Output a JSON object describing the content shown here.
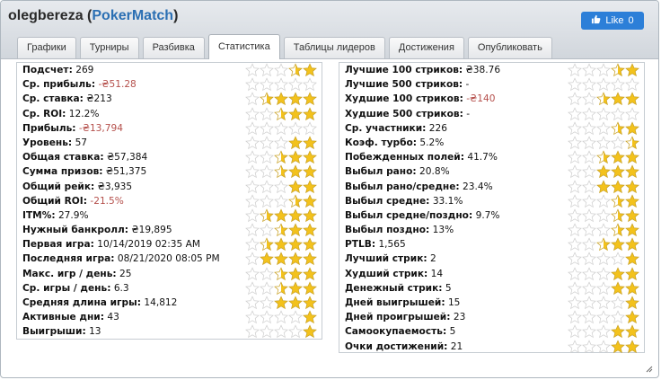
{
  "window": {
    "user": "olegbereza",
    "site_open": "(",
    "site": "PokerMatch",
    "site_close": ")"
  },
  "like": {
    "label": "Like",
    "count": "0"
  },
  "tabs": [
    {
      "label": "Графики",
      "active": false
    },
    {
      "label": "Турниры",
      "active": false
    },
    {
      "label": "Разбивка",
      "active": false
    },
    {
      "label": "Статистика",
      "active": true
    },
    {
      "label": "Таблицы лидеров",
      "active": false
    },
    {
      "label": "Достижения",
      "active": false
    },
    {
      "label": "Опубликовать",
      "active": false
    }
  ],
  "colors": {
    "negative": "#b5504c",
    "star_gold": "#f3c21c",
    "star_empty": "#e3e3e3",
    "like_bg": "#2c7fd8"
  },
  "left_stats": [
    {
      "label": "Подсчет:",
      "value": "269",
      "stars": 1.5
    },
    {
      "label": "Ср. прибыль:",
      "value": "-₴51.28",
      "negative": true,
      "stars": 0
    },
    {
      "label": "Ср. ставка:",
      "value": "₴213",
      "stars": 3.5
    },
    {
      "label": "Ср. ROI:",
      "value": "12.2%",
      "stars": 2.5
    },
    {
      "label": "Прибыль:",
      "value": "-₴13,794",
      "negative": true,
      "stars": 0
    },
    {
      "label": "Уровень:",
      "value": "57",
      "stars": 2
    },
    {
      "label": "Общая ставка:",
      "value": "₴57,384",
      "stars": 2.5
    },
    {
      "label": "Сумма призов:",
      "value": "₴51,375",
      "stars": 2.5
    },
    {
      "label": "Общий рейк:",
      "value": "₴3,935",
      "stars": 2
    },
    {
      "label": "Общий ROI:",
      "value": "-21.5%",
      "negative": true,
      "stars": 1.5
    },
    {
      "label": "ITM%:",
      "value": "27.9%",
      "stars": 3.5
    },
    {
      "label": "Нужный банкролл:",
      "value": "₴19,895",
      "stars": 2.5
    },
    {
      "label": "Первая игра:",
      "value": "10/14/2019 02:35 AM",
      "stars": 3.5
    },
    {
      "label": "Последняя игра:",
      "value": "08/21/2020 08:05 PM",
      "stars": 4
    },
    {
      "label": "Макс. игр / день:",
      "value": "25",
      "stars": 2.5
    },
    {
      "label": "Ср. игры / день:",
      "value": "6.3",
      "stars": 2.5
    },
    {
      "label": "Средняя длина игры:",
      "value": "14,812",
      "stars": 3
    },
    {
      "label": "Активные дни:",
      "value": "43",
      "stars": 1
    },
    {
      "label": "Выигрыши:",
      "value": "13",
      "stars": 1
    }
  ],
  "right_stats": [
    {
      "label": "Лучшие 100 стриков:",
      "value": "₴38.76",
      "stars": 1.5
    },
    {
      "label": "Лучшие 500 стриков:",
      "value": "-",
      "stars": 0
    },
    {
      "label": "Худшие 100 стриков:",
      "value": "-₴140",
      "negative": true,
      "stars": 2.5
    },
    {
      "label": "Худшие 500 стриков:",
      "value": "-",
      "stars": 0
    },
    {
      "label": "Ср. участники:",
      "value": "226",
      "stars": 1.5
    },
    {
      "label": "Коэф. турбо:",
      "value": "5.2%",
      "stars": 0.5
    },
    {
      "label": "Побежденных полей:",
      "value": "41.7%",
      "stars": 2.5
    },
    {
      "label": "Выбыл рано:",
      "value": "20.8%",
      "stars": 3
    },
    {
      "label": "Выбыл рано/средне:",
      "value": "23.4%",
      "stars": 3
    },
    {
      "label": "Выбыл средне:",
      "value": "33.1%",
      "stars": 1.5
    },
    {
      "label": "Выбыл средне/поздно:",
      "value": "9.7%",
      "stars": 1.5
    },
    {
      "label": "Выбыл поздно:",
      "value": "13%",
      "stars": 1.5
    },
    {
      "label": "PTLB:",
      "value": "1,565",
      "stars": 2.5
    },
    {
      "label": "Лучший стрик:",
      "value": "2",
      "stars": 1
    },
    {
      "label": "Худший стрик:",
      "value": "14",
      "stars": 2
    },
    {
      "label": "Денежный стрик:",
      "value": "5",
      "stars": 2
    },
    {
      "label": "Дней выигрышей:",
      "value": "15",
      "stars": 1
    },
    {
      "label": "Дней проигрышей:",
      "value": "23",
      "stars": 1
    },
    {
      "label": "Самоокупаемость:",
      "value": "5",
      "stars": 2
    },
    {
      "label": "Очки достижений:",
      "value": "21",
      "stars": 2
    }
  ]
}
